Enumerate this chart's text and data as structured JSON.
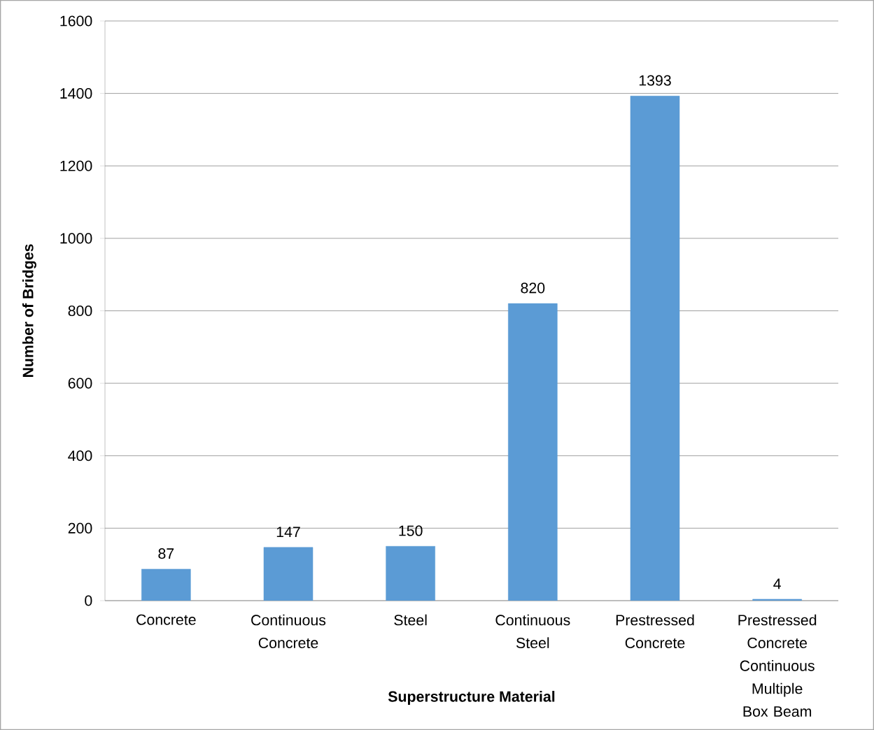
{
  "chart_data": {
    "type": "bar",
    "xlabel": "Superstructure Material",
    "ylabel": "Number of Bridges",
    "categories": [
      "Concrete",
      "Continuous Concrete",
      "Steel",
      "Continuous Steel",
      "Prestressed Concrete",
      "Prestressed Concrete Continuous Multiple Box Beam"
    ],
    "values": [
      87,
      147,
      150,
      820,
      1393,
      4
    ],
    "color": "#5b9bd5",
    "ylim": [
      0,
      1600
    ],
    "yticks": [
      0,
      200,
      400,
      600,
      800,
      1000,
      1200,
      1400,
      1600
    ],
    "grid": "y",
    "data_labels": true
  }
}
